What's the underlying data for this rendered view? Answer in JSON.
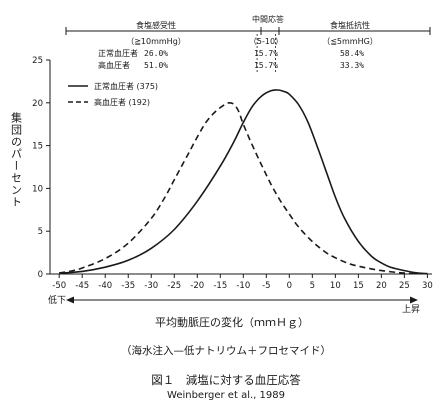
{
  "chart_data": {
    "type": "line",
    "ylabel": "集団のパーセント",
    "xlabel": "平均動脈圧の変化（ｍｍＨｇ）",
    "x_dir_low": "低下",
    "x_dir_high": "上昇",
    "xlim": [
      -52,
      31
    ],
    "ylim": [
      0,
      25
    ],
    "x_ticks": [
      "-50",
      "-45",
      "-40",
      "-35",
      "-30",
      "-25",
      "-20",
      "-15",
      "-10",
      "-5",
      "0",
      "5",
      "10",
      "15",
      "20",
      "25",
      "30"
    ],
    "y_ticks": [
      "0",
      "5",
      "10",
      "15",
      "20",
      "25"
    ],
    "series": [
      {
        "name": "正常血圧者 (375)",
        "style": "solid",
        "points": [
          [
            -50,
            0.1
          ],
          [
            -45,
            0.3
          ],
          [
            -40,
            0.8
          ],
          [
            -35,
            1.6
          ],
          [
            -30,
            3.0
          ],
          [
            -25,
            5.2
          ],
          [
            -20,
            8.5
          ],
          [
            -15,
            12.6
          ],
          [
            -12,
            15.5
          ],
          [
            -10,
            17.7
          ],
          [
            -8,
            19.6
          ],
          [
            -6,
            20.8
          ],
          [
            -4,
            21.4
          ],
          [
            -2.5,
            21.5
          ],
          [
            -1,
            21.3
          ],
          [
            0,
            21.0
          ],
          [
            2,
            19.8
          ],
          [
            4,
            17.8
          ],
          [
            6,
            15.0
          ],
          [
            8,
            12.0
          ],
          [
            10,
            9.0
          ],
          [
            12,
            6.5
          ],
          [
            15,
            3.8
          ],
          [
            18,
            2.0
          ],
          [
            20,
            1.3
          ],
          [
            22,
            0.8
          ],
          [
            25,
            0.4
          ],
          [
            28,
            0.1
          ],
          [
            30,
            0.05
          ]
        ]
      },
      {
        "name": "高血圧者 (192)",
        "style": "dashed",
        "points": [
          [
            -50,
            0.1
          ],
          [
            -47,
            0.4
          ],
          [
            -45,
            0.7
          ],
          [
            -40,
            1.8
          ],
          [
            -35,
            3.6
          ],
          [
            -30,
            6.5
          ],
          [
            -27,
            9.0
          ],
          [
            -25,
            11.0
          ],
          [
            -22,
            14.0
          ],
          [
            -20,
            16.0
          ],
          [
            -18,
            17.8
          ],
          [
            -16,
            19.0
          ],
          [
            -14,
            19.8
          ],
          [
            -13,
            20.0
          ],
          [
            -12,
            19.8
          ],
          [
            -11,
            19.0
          ],
          [
            -10,
            17.5
          ],
          [
            -8,
            15.0
          ],
          [
            -6,
            12.7
          ],
          [
            -4,
            10.5
          ],
          [
            -2,
            8.6
          ],
          [
            0,
            7.0
          ],
          [
            2,
            5.5
          ],
          [
            5,
            3.8
          ],
          [
            8,
            2.5
          ],
          [
            10,
            1.9
          ],
          [
            13,
            1.2
          ],
          [
            16,
            0.8
          ],
          [
            20,
            0.4
          ],
          [
            25,
            0.1
          ],
          [
            28,
            0.05
          ]
        ]
      }
    ],
    "top_groups": [
      {
        "label": "食塩感受性",
        "range": "（≧10mmHg）",
        "x_start": -52,
        "x_end": -7
      },
      {
        "label": "中間応答",
        "range": "（5-10）",
        "x_start": -7,
        "x_end": -3
      },
      {
        "label": "食塩抵抗性",
        "range": "（≦5mmHG）",
        "x_start": -3,
        "x_end": 31
      }
    ],
    "top_rows": [
      {
        "label": "正常血圧者",
        "values": [
          "26.0%",
          "15.7%",
          "58.4%"
        ]
      },
      {
        "label": "高血圧者",
        "values": [
          "51.0%",
          "15.7%",
          "33.3%"
        ]
      }
    ],
    "subtitle": "（海水注入—低ナトリウム＋フロセマイド）",
    "figure_title": "図１　減塩に対する血圧応答",
    "citation": "Weinberger et al., 1989"
  }
}
